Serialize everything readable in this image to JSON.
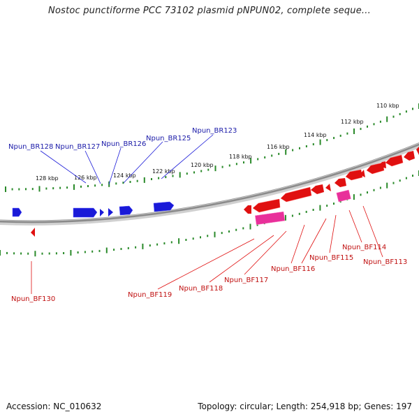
{
  "header": {
    "title": "Nostoc punctiforme PCC 73102 plasmid pNPUN02, complete seque..."
  },
  "footer": {
    "accession": "Accession: NC_010632",
    "info": "Topology: circular; Length: 254,918 bp; Genes: 197"
  },
  "colors": {
    "forward_gene": "#1a1ad8",
    "reverse_gene": "#e01010",
    "reverse_gene_alt": "#e8309a",
    "tick": "#2a8a2a",
    "backbone": "#8a8a8a",
    "forward_label": "#1a1aa8",
    "reverse_label": "#c01010"
  },
  "scale": {
    "unit": "kbp",
    "labels": [
      "128 kbp",
      "126 kbp",
      "124 kbp",
      "122 kbp",
      "120 kbp",
      "118 kbp",
      "116 kbp",
      "114 kbp",
      "112 kbp",
      "110 kbp"
    ]
  },
  "forward_genes": [
    {
      "label": "Npun_BR128"
    },
    {
      "label": "Npun_BR127"
    },
    {
      "label": "Npun_BR126"
    },
    {
      "label": "Npun_BR125"
    },
    {
      "label": "Npun_BR123"
    }
  ],
  "reverse_genes": [
    {
      "label": "Npun_BF130"
    },
    {
      "label": "Npun_BF119"
    },
    {
      "label": "Npun_BF118"
    },
    {
      "label": "Npun_BF117"
    },
    {
      "label": "Npun_BF116"
    },
    {
      "label": "Npun_BF115"
    },
    {
      "label": "Npun_BF114"
    },
    {
      "label": "Npun_BF113"
    }
  ]
}
